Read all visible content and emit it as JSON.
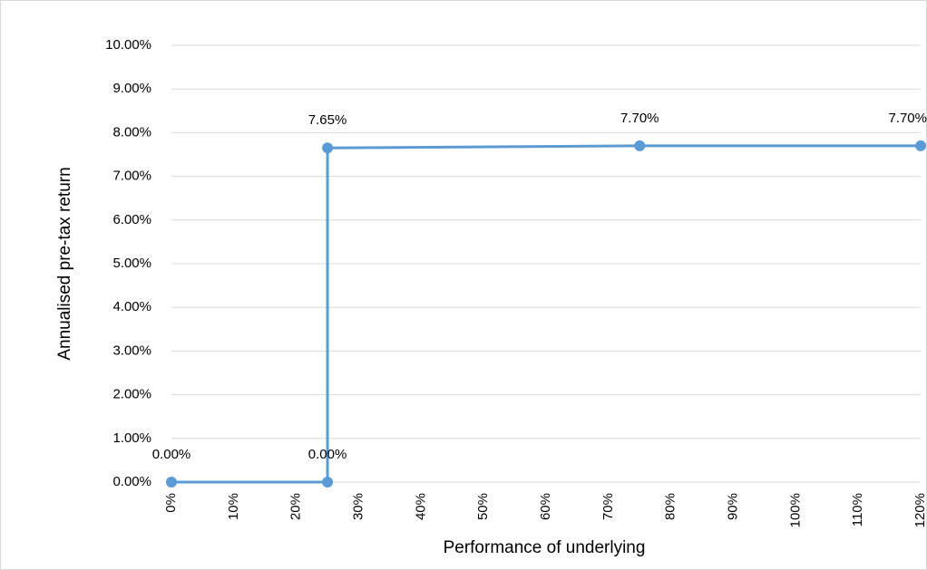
{
  "chart_data": {
    "type": "line",
    "xlabel": "Performance of underlying",
    "ylabel": "Annualised pre-tax return",
    "x": [
      0,
      25,
      25,
      75,
      120
    ],
    "series": [
      {
        "color": "#5b9bd5",
        "values": [
          0,
          0,
          7.65,
          7.7,
          7.7
        ],
        "value_labels": [
          "0.00%",
          "0.00%",
          "7.65%",
          "7.70%",
          "7.70%"
        ]
      }
    ],
    "xlim": [
      0,
      120
    ],
    "xticks": [
      {
        "value": 0,
        "label": "0%"
      },
      {
        "value": 10,
        "label": "10%"
      },
      {
        "value": 20,
        "label": "20%"
      },
      {
        "value": 30,
        "label": "30%"
      },
      {
        "value": 40,
        "label": "40%"
      },
      {
        "value": 50,
        "label": "50%"
      },
      {
        "value": 60,
        "label": "60%"
      },
      {
        "value": 70,
        "label": "70%"
      },
      {
        "value": 80,
        "label": "80%"
      },
      {
        "value": 90,
        "label": "90%"
      },
      {
        "value": 100,
        "label": "100%"
      },
      {
        "value": 110,
        "label": "110%"
      },
      {
        "value": 120,
        "label": "120%"
      }
    ],
    "ylim": [
      0,
      10
    ],
    "yticks": [
      {
        "value": 0,
        "label": "0.00%"
      },
      {
        "value": 1,
        "label": "1.00%"
      },
      {
        "value": 2,
        "label": "2.00%"
      },
      {
        "value": 3,
        "label": "3.00%"
      },
      {
        "value": 4,
        "label": "4.00%"
      },
      {
        "value": 5,
        "label": "5.00%"
      },
      {
        "value": 6,
        "label": "6.00%"
      },
      {
        "value": 7,
        "label": "7.00%"
      },
      {
        "value": 8,
        "label": "8.00%"
      },
      {
        "value": 9,
        "label": "9.00%"
      },
      {
        "value": 10,
        "label": "10.00%"
      }
    ],
    "grid": true
  }
}
